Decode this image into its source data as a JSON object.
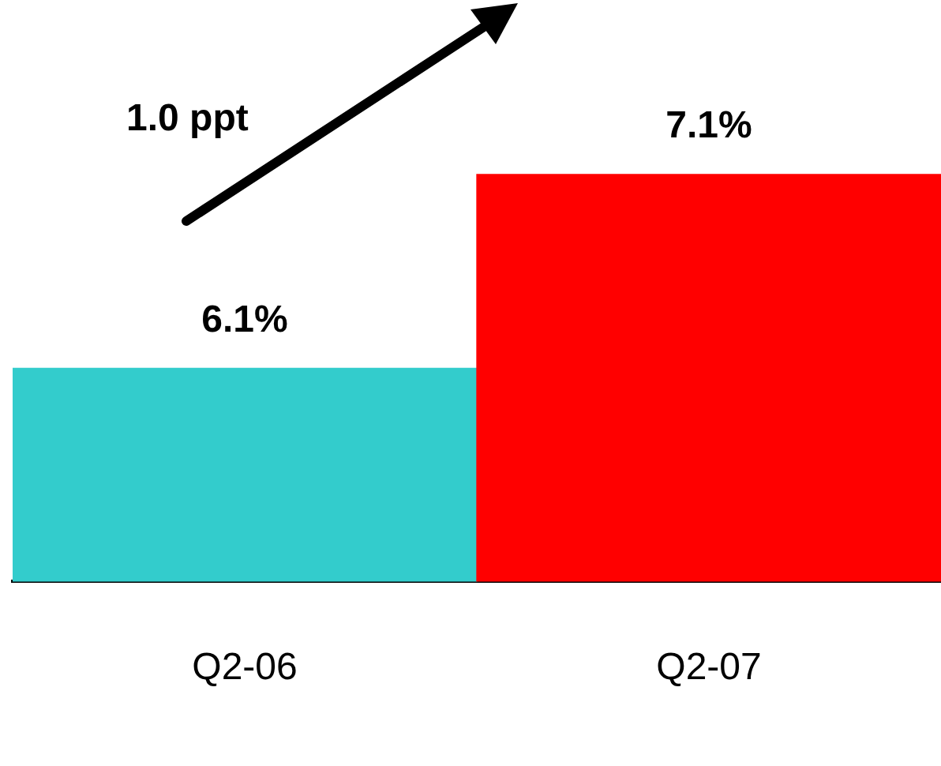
{
  "chart_data": {
    "type": "bar",
    "categories": [
      "Q2-06",
      "Q2-07"
    ],
    "values": [
      6.1,
      7.1
    ],
    "colors": [
      "#33cccc",
      "#ff0000"
    ],
    "ylim": [
      5,
      8
    ],
    "data_labels": true,
    "value_labels": [
      "6.1%",
      "7.1%"
    ],
    "grid": false,
    "legend": false,
    "tick_labels": "x",
    "annotations": [
      "1.0 ppt"
    ]
  }
}
